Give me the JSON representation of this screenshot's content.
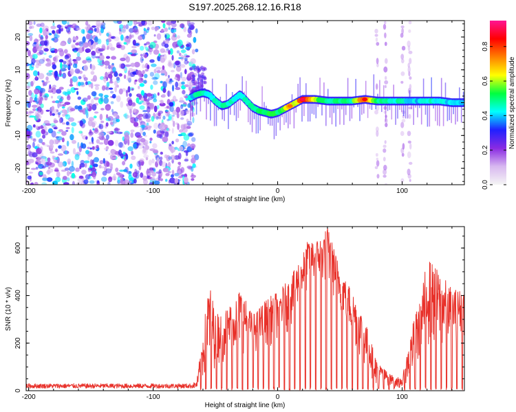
{
  "title": "S197.2025.268.12.16.R18",
  "chart_data": [
    {
      "type": "heatmap",
      "name": "spectrogram",
      "xlabel": "Height of straight line (km)",
      "ylabel": "Frequency (Hz)",
      "xlim": [
        -202,
        150
      ],
      "ylim": [
        -25,
        25
      ],
      "xticks": [
        -200,
        -100,
        0,
        100
      ],
      "xtick_labels": [
        "-200",
        "-100",
        "0",
        "100"
      ],
      "yticks": [
        -20,
        -10,
        0,
        10,
        20
      ],
      "ytick_labels": [
        "-20",
        "-10",
        "0",
        "10",
        "20"
      ],
      "noise_region_x": [
        -202,
        -65
      ],
      "noise_region_amplitude": [
        0.1,
        0.45
      ],
      "interference_bands_x": [
        [
          78,
          82
        ],
        [
          84,
          89
        ],
        [
          98,
          103
        ],
        [
          104,
          108
        ]
      ],
      "ridge": {
        "x": [
          -70,
          -65,
          -60,
          -55,
          -50,
          -45,
          -40,
          -35,
          -30,
          -25,
          -20,
          -15,
          -10,
          -5,
          0,
          5,
          10,
          15,
          20,
          30,
          40,
          50,
          60,
          70,
          80,
          90,
          100,
          110,
          120,
          130,
          140,
          150
        ],
        "frequency": [
          1.5,
          2.5,
          3.0,
          2.5,
          0.5,
          -1.0,
          -0.5,
          1.0,
          2.5,
          0.5,
          -1.5,
          -2.5,
          -3.0,
          -3.5,
          -3.0,
          -2.0,
          -1.0,
          0.0,
          1.0,
          1.0,
          0.5,
          0.5,
          0.5,
          1.0,
          0.5,
          0.5,
          0.5,
          0.5,
          0.5,
          0.5,
          0.0,
          0.0
        ],
        "amplitude": [
          0.4,
          0.45,
          0.5,
          0.4,
          0.5,
          0.45,
          0.5,
          0.4,
          0.45,
          0.5,
          0.45,
          0.5,
          0.5,
          0.55,
          0.5,
          0.6,
          0.75,
          0.6,
          0.9,
          0.6,
          0.5,
          0.5,
          0.5,
          0.85,
          0.5,
          0.45,
          0.45,
          0.4,
          0.45,
          0.45,
          0.4,
          0.4
        ]
      },
      "colorbar": {
        "label": "Normalized spectral amplitude",
        "range": [
          0,
          0.95
        ],
        "ticks": [
          0.0,
          0.2,
          0.4,
          0.6,
          0.8
        ],
        "tick_labels": [
          "0.0",
          "0.2",
          "0.4",
          "0.6",
          "0.8"
        ],
        "colors": [
          "#f5f5f5",
          "#d8b8f0",
          "#8a2be2",
          "#2020ff",
          "#00ffff",
          "#00ff40",
          "#ffff00",
          "#ff8000",
          "#ff0000",
          "#ff1493"
        ]
      }
    },
    {
      "type": "line",
      "name": "snr",
      "xlabel": "Height of straight line (km)",
      "ylabel": "SNR (10 * v/v)",
      "xlim": [
        -202,
        150
      ],
      "ylim": [
        0,
        690
      ],
      "xticks": [
        -200,
        -100,
        0,
        100
      ],
      "xtick_labels": [
        "-200",
        "-100",
        "0",
        "100"
      ],
      "yticks": [
        0,
        200,
        400,
        600
      ],
      "ytick_labels": [
        "0",
        "200",
        "400",
        "600"
      ],
      "color": "#e8312a",
      "envelope": {
        "x": [
          -202,
          -150,
          -100,
          -70,
          -65,
          -60,
          -55,
          -50,
          -40,
          -30,
          -20,
          -10,
          0,
          10,
          20,
          25,
          30,
          35,
          40,
          50,
          60,
          70,
          80,
          90,
          100,
          110,
          115,
          120,
          125,
          130,
          140,
          150
        ],
        "max": [
          30,
          30,
          30,
          30,
          40,
          250,
          460,
          330,
          350,
          430,
          320,
          380,
          420,
          470,
          580,
          640,
          630,
          650,
          690,
          520,
          420,
          300,
          120,
          70,
          50,
          320,
          380,
          570,
          530,
          500,
          430,
          420
        ],
        "min": [
          10,
          10,
          10,
          10,
          10,
          20,
          50,
          100,
          120,
          160,
          140,
          170,
          210,
          250,
          360,
          420,
          430,
          440,
          430,
          330,
          200,
          80,
          20,
          20,
          10,
          40,
          100,
          170,
          160,
          140,
          180,
          230
        ]
      }
    }
  ]
}
